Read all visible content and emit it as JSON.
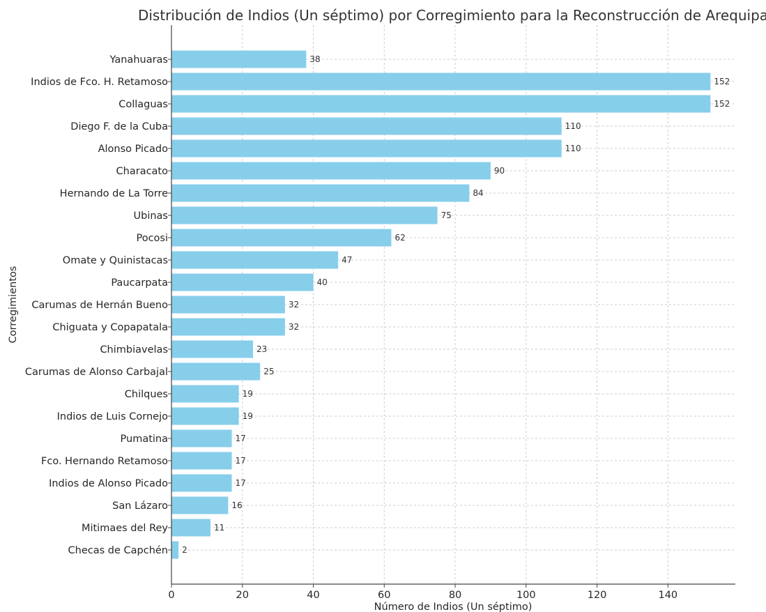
{
  "chart_data": {
    "type": "bar",
    "orientation": "horizontal",
    "title": "Distribución de Indios (Un séptimo) por Corregimiento para la Reconstrucción de Arequipa",
    "xlabel": "Número de Indios (Un séptimo)",
    "ylabel": "Corregimientos",
    "xlim": [
      0,
      159
    ],
    "xticks": [
      0,
      20,
      40,
      60,
      80,
      100,
      120,
      140
    ],
    "grid": true,
    "bar_color": "#87CEEB",
    "categories": [
      "Yanahuaras",
      "Indios de Fco. H. Retamoso",
      "Collaguas",
      "Diego F. de la Cuba",
      "Alonso Picado",
      "Characato",
      "Hernando de La Torre",
      "Ubinas",
      "Pocosi",
      "Omate y Quinistacas",
      "Paucarpata",
      "Carumas de Hernán Bueno",
      "Chiguata y Copapatala",
      "Chimbiavelas",
      "Carumas de Alonso Carbajal",
      "Chilques",
      "Indios de Luis Cornejo",
      "Pumatina",
      "Fco. Hernando Retamoso",
      "Indios de Alonso Picado",
      "San Lázaro",
      "Mitimaes del Rey",
      "Checas de Capchén"
    ],
    "values": [
      38,
      152,
      152,
      110,
      110,
      90,
      84,
      75,
      62,
      47,
      40,
      32,
      32,
      23,
      25,
      19,
      19,
      17,
      17,
      17,
      16,
      11,
      2
    ]
  }
}
